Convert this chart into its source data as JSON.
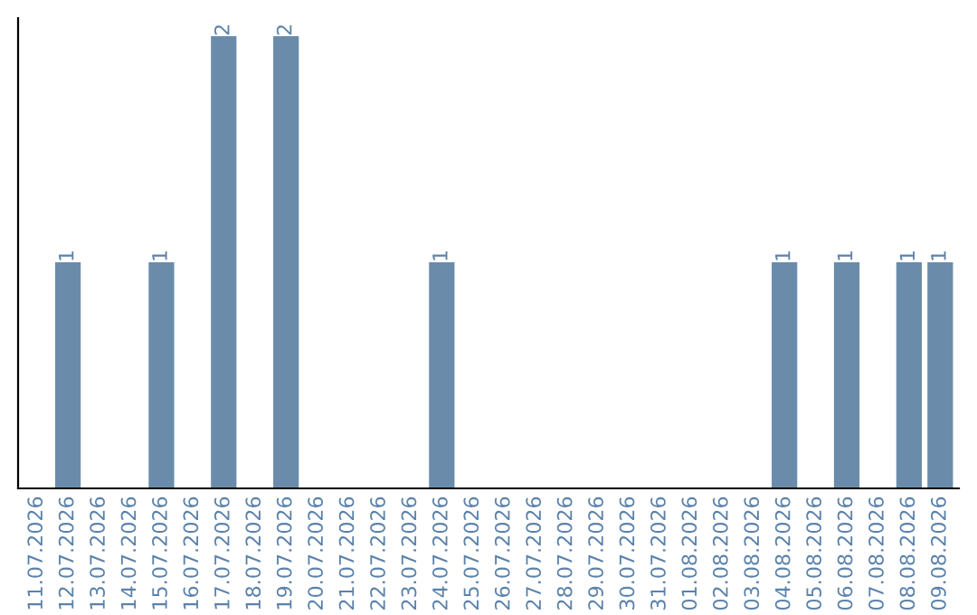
{
  "chart_data": {
    "type": "bar",
    "categories": [
      "11.07.2026",
      "12.07.2026",
      "13.07.2026",
      "14.07.2026",
      "15.07.2026",
      "16.07.2026",
      "17.07.2026",
      "18.07.2026",
      "19.07.2026",
      "20.07.2026",
      "21.07.2026",
      "22.07.2026",
      "23.07.2026",
      "24.07.2026",
      "25.07.2026",
      "26.07.2026",
      "27.07.2026",
      "28.07.2026",
      "29.07.2026",
      "30.07.2026",
      "31.07.2026",
      "01.08.2026",
      "02.08.2026",
      "03.08.2026",
      "04.08.2026",
      "05.08.2026",
      "06.08.2026",
      "07.08.2026",
      "08.08.2026",
      "09.08.2026"
    ],
    "values": [
      0,
      1,
      0,
      0,
      1,
      0,
      2,
      0,
      2,
      0,
      0,
      0,
      0,
      1,
      0,
      0,
      0,
      0,
      0,
      0,
      0,
      0,
      0,
      0,
      1,
      0,
      1,
      0,
      1,
      1
    ],
    "value_labels": [
      null,
      "1",
      null,
      null,
      "1",
      null,
      "2",
      null,
      "2",
      null,
      null,
      null,
      null,
      "1",
      null,
      null,
      null,
      null,
      null,
      null,
      null,
      null,
      null,
      null,
      "1",
      null,
      "1",
      null,
      "1",
      "1"
    ],
    "color": "#6a8caa",
    "tick_labels": "x",
    "grid": false
  }
}
